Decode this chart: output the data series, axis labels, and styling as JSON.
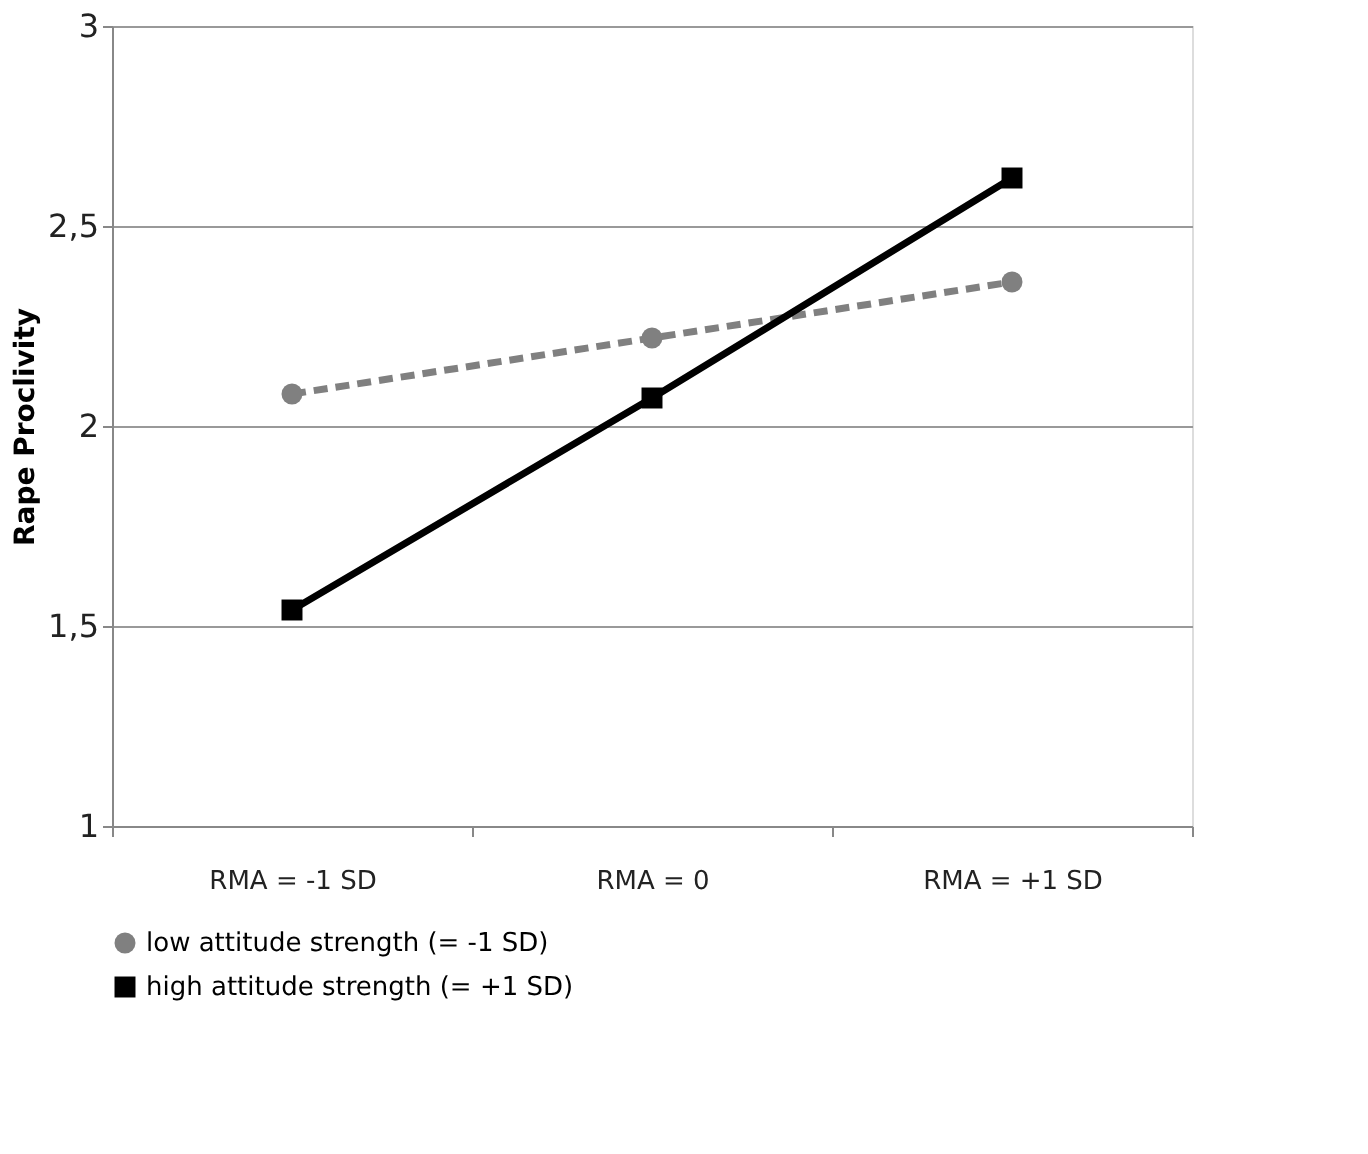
{
  "chart_data": {
    "type": "line",
    "ylabel": "Rape Proclivity",
    "categories": [
      "RMA = -1 SD",
      "RMA = 0",
      "RMA = +1 SD"
    ],
    "ylim": [
      1,
      3
    ],
    "yticks": [
      1,
      {
        "value": 1.5,
        "label": "1,5"
      },
      2,
      {
        "value": 2.5,
        "label": "2,5"
      },
      3
    ],
    "grid": "y",
    "legend": "bottom",
    "series": [
      {
        "name": "low attitude strength (= -1 SD)",
        "color": "#808080",
        "values": [
          2.08,
          2.22,
          2.36
        ],
        "marker": "circle",
        "line_style": "dashed"
      },
      {
        "name": "high attitude strength (= +1 SD)",
        "color": "#000000",
        "values": [
          1.54,
          2.07,
          2.62
        ],
        "marker": "square",
        "line_style": "solid"
      }
    ]
  }
}
